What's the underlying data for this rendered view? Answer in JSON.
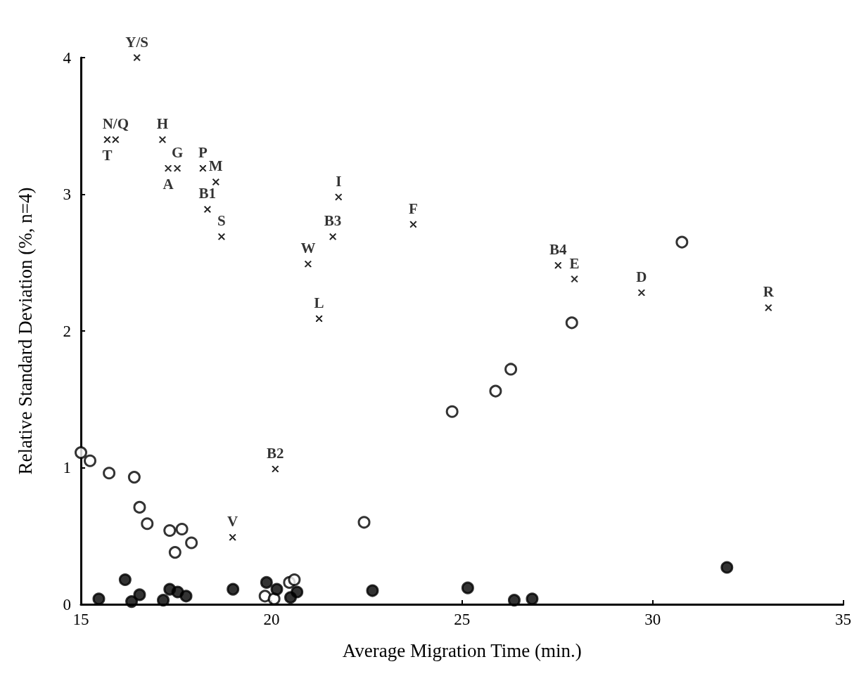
{
  "chart_data": {
    "type": "scatter",
    "xlabel": "Average Migration Time (min.)",
    "ylabel": "Relative Standard Deviation (%, n=4)",
    "xlim": [
      15,
      35
    ],
    "xticks": [
      15,
      20,
      25,
      30,
      35
    ],
    "ylim": [
      0,
      4
    ],
    "yticks": [
      0,
      1,
      2,
      3,
      4
    ],
    "grid": false,
    "series": [
      {
        "color": "#000000",
        "marker": "cross",
        "x": [
          16.47,
          15.69,
          15.91,
          17.14,
          17.29,
          17.53,
          18.2,
          18.54,
          18.32,
          18.69,
          21.76,
          21.61,
          20.96,
          21.25,
          23.72,
          27.52,
          27.95,
          29.71,
          33.04,
          20.1,
          18.98
        ],
        "values": [
          4.0,
          3.4,
          3.4,
          3.4,
          3.19,
          3.19,
          3.19,
          3.09,
          2.89,
          2.69,
          2.98,
          2.69,
          2.49,
          2.09,
          2.78,
          2.48,
          2.38,
          2.28,
          2.17,
          0.99,
          0.49
        ]
      },
      {
        "color": "#ffffff",
        "marker": "circle",
        "x": [
          15.0,
          15.24,
          15.74,
          16.4,
          16.54,
          16.74,
          17.33,
          17.65,
          17.9,
          17.47,
          22.43,
          19.83,
          20.07,
          20.47,
          20.6,
          24.74,
          25.88,
          26.28,
          27.88,
          30.77
        ],
        "values": [
          1.11,
          1.05,
          0.96,
          0.93,
          0.71,
          0.59,
          0.54,
          0.55,
          0.45,
          0.38,
          0.6,
          0.06,
          0.04,
          0.16,
          0.18,
          1.41,
          1.56,
          1.72,
          2.06,
          2.65
        ]
      },
      {
        "color": "#000000",
        "marker": "circle",
        "x": [
          15.47,
          16.16,
          16.33,
          16.54,
          17.16,
          17.33,
          17.54,
          17.76,
          18.99,
          19.87,
          20.14,
          20.5,
          20.67,
          22.65,
          25.15,
          26.37,
          26.84,
          31.95
        ],
        "values": [
          0.04,
          0.18,
          0.02,
          0.07,
          0.03,
          0.11,
          0.09,
          0.06,
          0.11,
          0.16,
          0.11,
          0.05,
          0.09,
          0.1,
          0.12,
          0.03,
          0.04,
          0.27
        ]
      }
    ],
    "annotations": [
      {
        "text": "Y/S",
        "x": 16.47,
        "y": 4.0
      },
      {
        "text": "T",
        "x": 15.69,
        "y": 3.4
      },
      {
        "text": "N/Q",
        "x": 15.91,
        "y": 3.4
      },
      {
        "text": "H",
        "x": 17.14,
        "y": 3.4
      },
      {
        "text": "A",
        "x": 17.29,
        "y": 3.19
      },
      {
        "text": "G",
        "x": 17.53,
        "y": 3.19
      },
      {
        "text": "P",
        "x": 18.2,
        "y": 3.19
      },
      {
        "text": "M",
        "x": 18.54,
        "y": 3.09
      },
      {
        "text": "B1",
        "x": 18.32,
        "y": 2.89
      },
      {
        "text": "S",
        "x": 18.69,
        "y": 2.69
      },
      {
        "text": "I",
        "x": 21.76,
        "y": 2.98
      },
      {
        "text": "B3",
        "x": 21.61,
        "y": 2.69
      },
      {
        "text": "W",
        "x": 20.96,
        "y": 2.49
      },
      {
        "text": "L",
        "x": 21.25,
        "y": 2.09
      },
      {
        "text": "F",
        "x": 23.72,
        "y": 2.78
      },
      {
        "text": "B4",
        "x": 27.52,
        "y": 2.48
      },
      {
        "text": "E",
        "x": 27.95,
        "y": 2.38
      },
      {
        "text": "D",
        "x": 29.71,
        "y": 2.28
      },
      {
        "text": "R",
        "x": 33.04,
        "y": 2.17
      },
      {
        "text": "B2",
        "x": 20.1,
        "y": 0.99
      },
      {
        "text": "V",
        "x": 18.98,
        "y": 0.49
      }
    ]
  }
}
